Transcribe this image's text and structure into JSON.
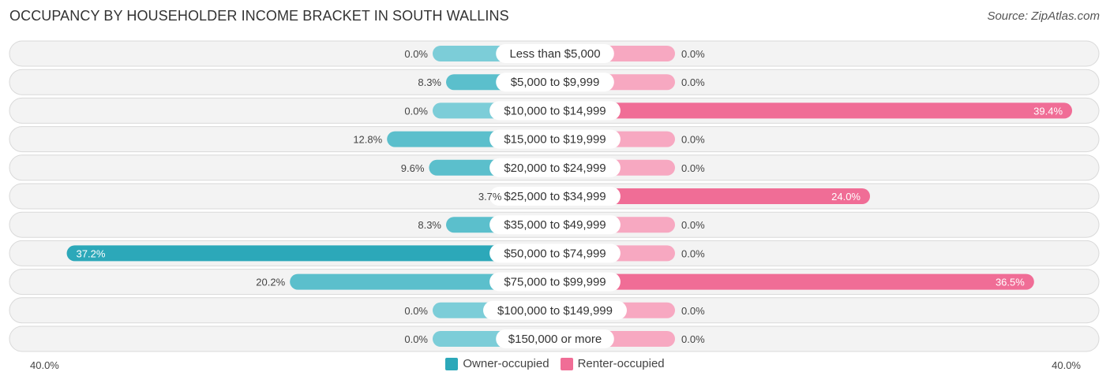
{
  "header": {
    "title": "OCCUPANCY BY HOUSEHOLDER INCOME BRACKET IN SOUTH WALLINS",
    "source": "Source: ZipAtlas.com"
  },
  "colors": {
    "owner": "#2ca8b9",
    "owner_light": "#7ccdd8",
    "renter": "#f06d96",
    "renter_light": "#f7a8c1"
  },
  "chart_data": {
    "type": "bar",
    "orientation": "diverging-horizontal",
    "title": "OCCUPANCY BY HOUSEHOLDER INCOME BRACKET IN SOUTH WALLINS",
    "categories": [
      "Less than $5,000",
      "$5,000 to $9,999",
      "$10,000 to $14,999",
      "$15,000 to $19,999",
      "$20,000 to $24,999",
      "$25,000 to $34,999",
      "$35,000 to $49,999",
      "$50,000 to $74,999",
      "$75,000 to $99,999",
      "$100,000 to $149,999",
      "$150,000 or more"
    ],
    "series": [
      {
        "name": "Owner-occupied",
        "side": "left",
        "values": [
          0.0,
          8.3,
          0.0,
          12.8,
          9.6,
          3.7,
          8.3,
          37.2,
          20.2,
          0.0,
          0.0
        ]
      },
      {
        "name": "Renter-occupied",
        "side": "right",
        "values": [
          0.0,
          0.0,
          39.4,
          0.0,
          0.0,
          24.0,
          0.0,
          0.0,
          36.5,
          0.0,
          0.0
        ]
      }
    ],
    "value_labels_owner": [
      "0.0%",
      "8.3%",
      "0.0%",
      "12.8%",
      "9.6%",
      "3.7%",
      "8.3%",
      "37.2%",
      "20.2%",
      "0.0%",
      "0.0%"
    ],
    "value_labels_renter": [
      "0.0%",
      "0.0%",
      "39.4%",
      "0.0%",
      "0.0%",
      "24.0%",
      "0.0%",
      "0.0%",
      "36.5%",
      "0.0%",
      "0.0%"
    ],
    "xlim": [
      -40,
      40
    ],
    "axis_labels": {
      "left": "40.0%",
      "right": "40.0%"
    },
    "legend": {
      "position": "bottom-center",
      "entries": [
        "Owner-occupied",
        "Renter-occupied"
      ]
    },
    "unit": "%"
  }
}
